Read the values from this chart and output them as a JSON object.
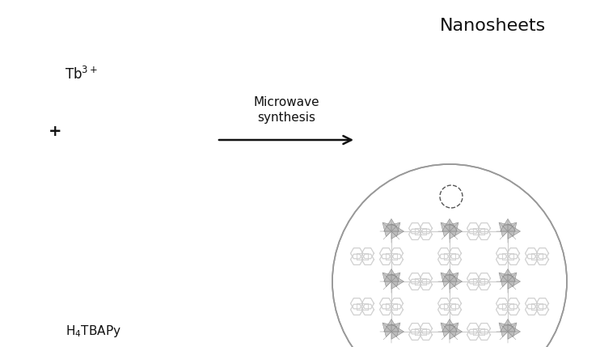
{
  "bg_color": "#ffffff",
  "title": "Nanosheets",
  "title_fontsize": 16,
  "label_tb": "Tb$^{3+}$",
  "label_plus": "+",
  "label_ligand": "H$_4$TBAPy",
  "label_arrow": "Microwave\nsynthesis",
  "nanosheet_color": "#d0d0d0",
  "nanosheet_edge": "#aaaaaa",
  "nanosheet_side_color": "#b8b8b8",
  "arrow_color": "#111111",
  "bracket_color": "#111111",
  "sphere_color": "#c0c0c0",
  "sphere_edge": "#888888",
  "mol_bond_color": "#555555",
  "mol_dark_atom": "#333333",
  "mol_mid_atom": "#777777",
  "mol_light_atom": "#cccccc",
  "mof_ring_color": "#cccccc",
  "mof_node_color": "#b0b0b0",
  "mof_node_edge": "#888888",
  "circle_edge": "#999999",
  "dashed_circle_color": "#555555",
  "pointer_line_color": "#777777"
}
